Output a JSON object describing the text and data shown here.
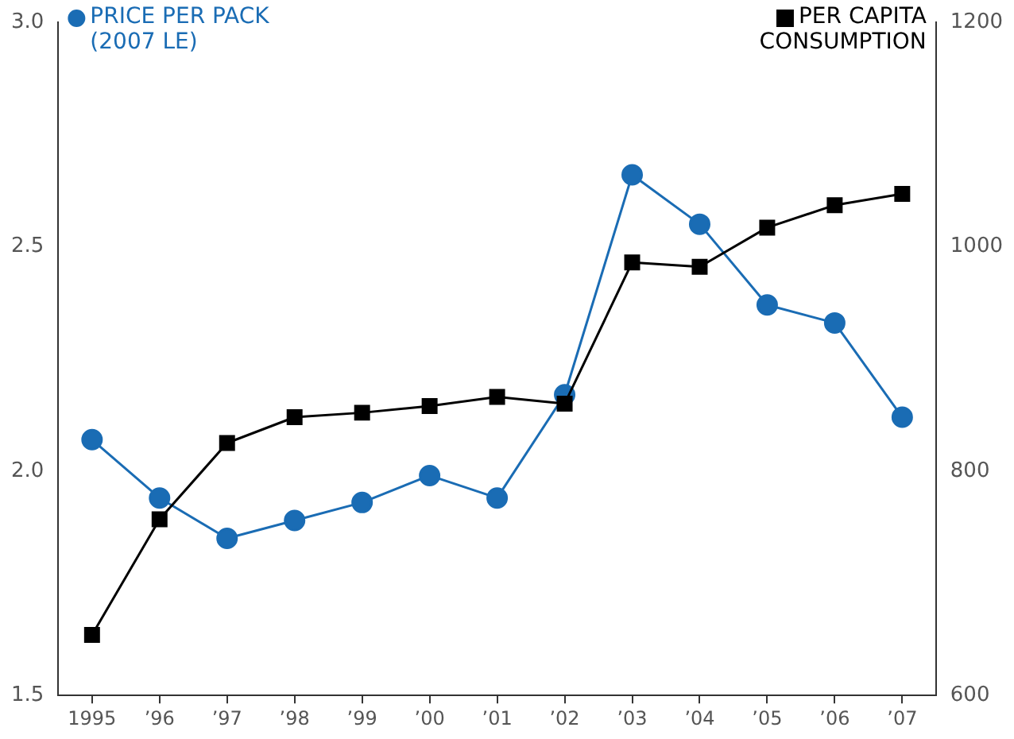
{
  "chart_data": {
    "type": "line",
    "categories": [
      "1995",
      "’96",
      "’97",
      "’98",
      "’99",
      "’00",
      "’01",
      "’02",
      "’03",
      "’04",
      "’05",
      "’06",
      "’07"
    ],
    "series": [
      {
        "name": "PRICE PER PACK (2007 LE)",
        "color": "#1a6cb4",
        "marker": "circle",
        "values": [
          2.07,
          1.94,
          1.85,
          1.89,
          1.93,
          1.99,
          1.94,
          2.17,
          2.66,
          2.55,
          2.37,
          2.33,
          2.12
        ]
      },
      {
        "name": "PER CAPITA CONSUMPTION",
        "color": "#000000",
        "marker": "square",
        "axis": "y2",
        "values": [
          654,
          757,
          825,
          848,
          852,
          858,
          866,
          860,
          986,
          982,
          1017,
          1037,
          1047
        ]
      }
    ],
    "ylim": [
      1.5,
      3.0
    ],
    "yticks": [
      {
        "value": 1.5,
        "label": "1.5"
      },
      {
        "value": 2,
        "label": "2.0"
      },
      {
        "value": 2.5,
        "label": "2.5"
      },
      {
        "value": 3,
        "label": "3.0"
      }
    ],
    "y2lim": [
      600,
      1200
    ],
    "y2ticks": [
      600,
      800,
      1000,
      1200
    ],
    "grid": false,
    "legend": "top",
    "line_style": "solid"
  }
}
